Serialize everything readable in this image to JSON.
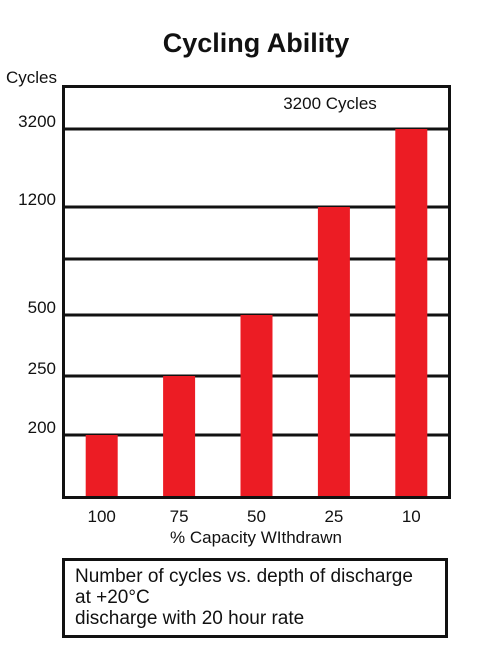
{
  "chart_data": {
    "type": "bar",
    "title": "Cycling Ability",
    "ylabel": "Cycles",
    "xlabel": "% Capacity WIthdrawn",
    "categories": [
      "100",
      "75",
      "50",
      "25",
      "10"
    ],
    "values": [
      200,
      250,
      500,
      1200,
      3200
    ],
    "y_tick_labels": [
      "200",
      "250",
      "500",
      "1200",
      "3200"
    ],
    "annotation": "3200 Cycles",
    "bar_color": "#ec1c24",
    "grid": true,
    "y_scale": "nonlinear"
  },
  "caption": {
    "line1": "Number of cycles vs. depth of discharge",
    "line2": "at +20°C",
    "line3": "discharge with 20 hour rate"
  }
}
